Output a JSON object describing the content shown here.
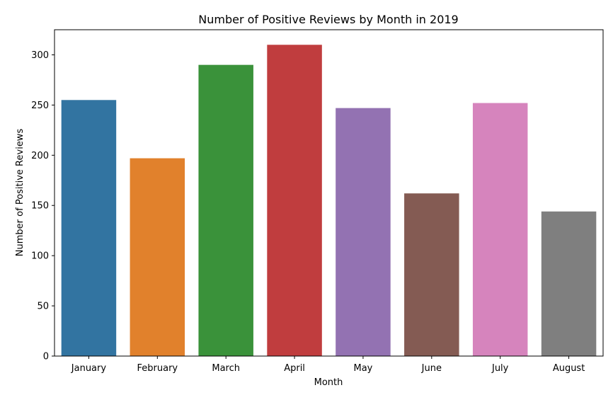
{
  "chart_data": {
    "type": "bar",
    "title": "Number of Positive Reviews by Month in 2019",
    "xlabel": "Month",
    "ylabel": "Number of Positive Reviews",
    "categories": [
      "January",
      "February",
      "March",
      "April",
      "May",
      "June",
      "July",
      "August"
    ],
    "values": [
      255,
      197,
      290,
      310,
      247,
      162,
      252,
      144
    ],
    "colors": [
      "#3274a1",
      "#e1812c",
      "#3a923a",
      "#c03d3e",
      "#9372b2",
      "#845b53",
      "#d684bd",
      "#7f7f7f"
    ],
    "ylim": [
      0,
      325
    ],
    "yticks": [
      0,
      50,
      100,
      150,
      200,
      250,
      300
    ],
    "grid": false,
    "legend": "none"
  }
}
